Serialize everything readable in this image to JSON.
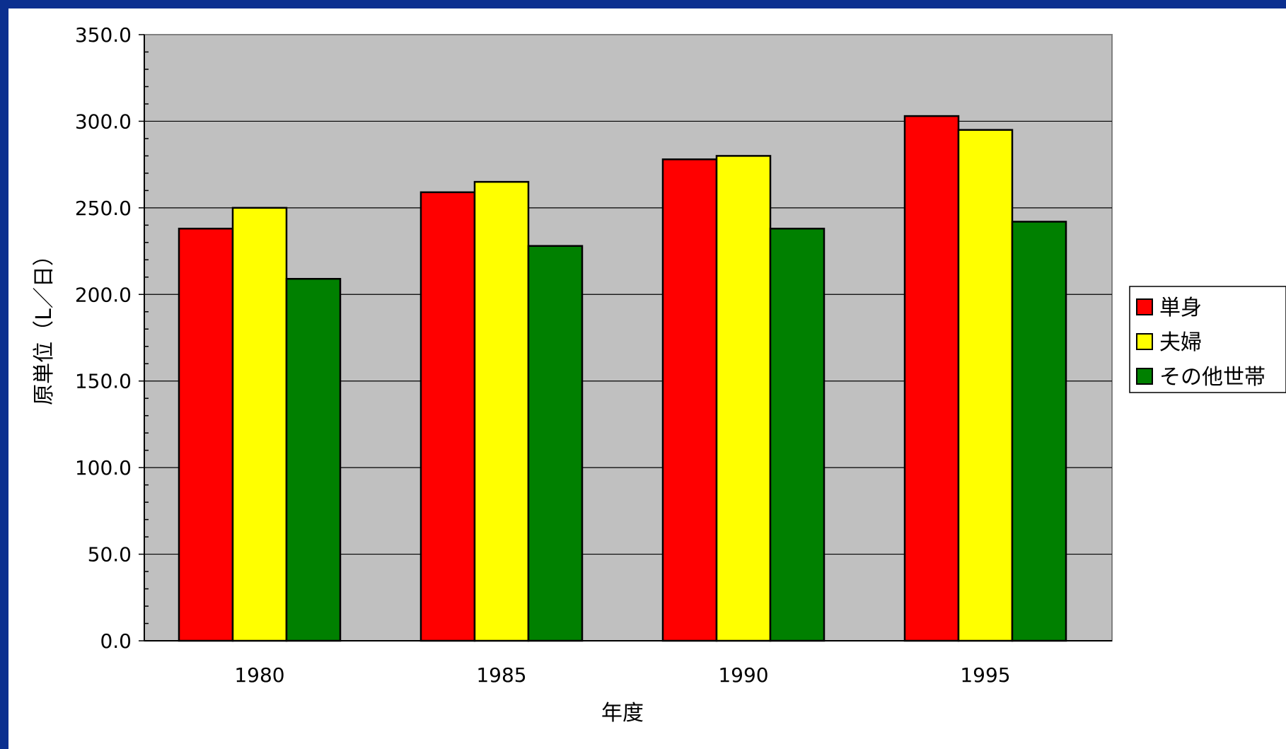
{
  "chart_data": {
    "type": "bar",
    "title": "",
    "xlabel": "年度",
    "ylabel": "原単位（L／日）",
    "categories": [
      "1980",
      "1985",
      "1990",
      "1995"
    ],
    "series": [
      {
        "name": "単身",
        "color": "#ff0000",
        "values": [
          238,
          259,
          278,
          303
        ]
      },
      {
        "name": "夫婦",
        "color": "#ffff00",
        "values": [
          250,
          265,
          280,
          295
        ]
      },
      {
        "name": "その他世帯",
        "color": "#008000",
        "values": [
          209,
          228,
          238,
          242
        ]
      }
    ],
    "ylim": [
      0,
      350
    ],
    "yticks": [
      "0.0",
      "50.0",
      "100.0",
      "150.0",
      "200.0",
      "250.0",
      "300.0",
      "350.0"
    ],
    "grid": true,
    "plot_background": "#c0c0c0",
    "legend_position": "right"
  }
}
